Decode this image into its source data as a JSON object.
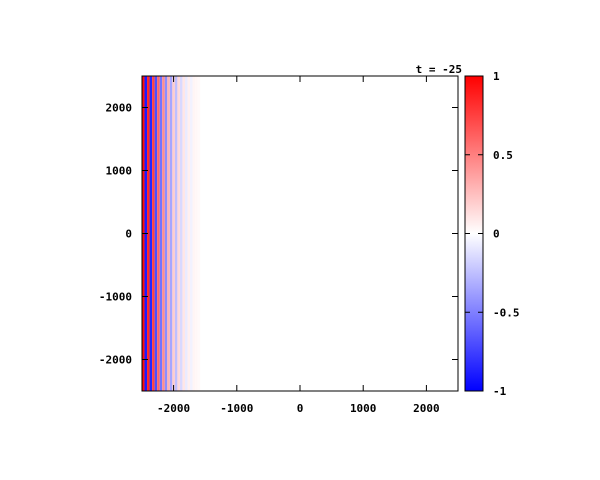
{
  "chart_data": {
    "type": "heatmap",
    "title": "t = -25",
    "xlabel": "",
    "ylabel": "",
    "xlim": [
      -2500,
      2500
    ],
    "ylim": [
      -2500,
      2500
    ],
    "x_ticks": [
      "-2000",
      "-1000",
      "0",
      "1000",
      "2000"
    ],
    "x_tick_values": [
      -2000,
      -1000,
      0,
      1000,
      2000
    ],
    "y_ticks": [
      "-2000",
      "-1000",
      "0",
      "1000",
      "2000"
    ],
    "y_tick_values": [
      -2000,
      -1000,
      0,
      1000,
      2000
    ],
    "colorbar": {
      "range": [
        -1,
        1
      ],
      "ticks": [
        "-1",
        "-0.5",
        "0",
        "0.5",
        "1"
      ],
      "tick_values": [
        -1,
        -0.5,
        0,
        0.5,
        1
      ],
      "colors": {
        "low": "#0000ff",
        "mid": "#ffffff",
        "high": "#ff0000"
      }
    },
    "description_note": "",
    "stripes": [
      {
        "x": -2480,
        "value": 0.95
      },
      {
        "x": -2440,
        "value": -0.9
      },
      {
        "x": -2400,
        "value": 0.85
      },
      {
        "x": -2360,
        "value": -0.85
      },
      {
        "x": -2320,
        "value": 0.75
      },
      {
        "x": -2280,
        "value": -0.7
      },
      {
        "x": -2240,
        "value": 0.6
      },
      {
        "x": -2200,
        "value": -0.55
      },
      {
        "x": -2160,
        "value": 0.45
      },
      {
        "x": -2120,
        "value": -0.45
      },
      {
        "x": -2080,
        "value": 0.3
      },
      {
        "x": -2040,
        "value": -0.35
      },
      {
        "x": -2000,
        "value": 0.2
      },
      {
        "x": -1960,
        "value": -0.25
      },
      {
        "x": -1920,
        "value": 0.15
      },
      {
        "x": -1880,
        "value": -0.15
      },
      {
        "x": -1840,
        "value": 0.1
      },
      {
        "x": -1800,
        "value": -0.08
      },
      {
        "x": -1760,
        "value": 0.06
      },
      {
        "x": -1720,
        "value": -0.05
      },
      {
        "x": -1680,
        "value": 0.04
      },
      {
        "x": -1640,
        "value": 0.03
      },
      {
        "x": -1600,
        "value": 0.02
      }
    ]
  }
}
